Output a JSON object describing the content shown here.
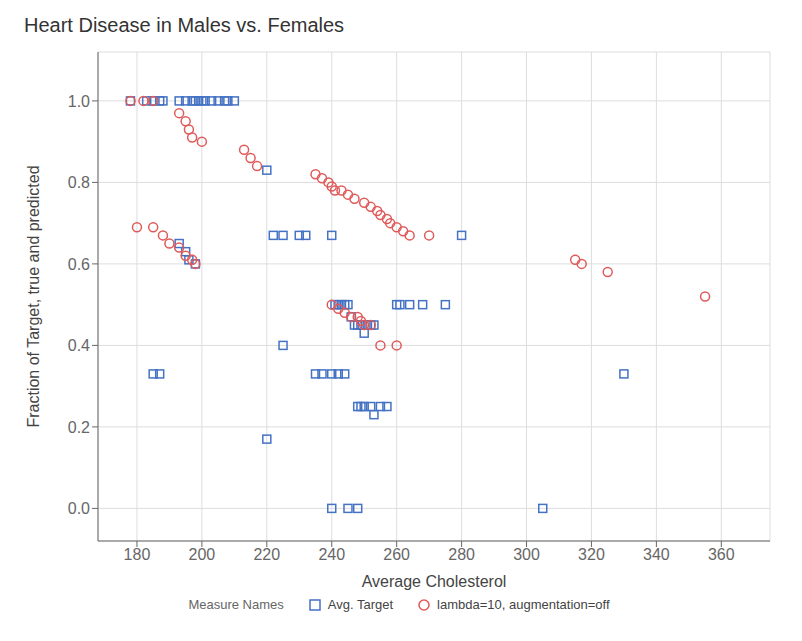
{
  "chart_data": {
    "type": "scatter",
    "title": "Heart Disease in Males vs. Females",
    "x_label": "Average Cholesterol",
    "y_label": "Fraction of Target, true and predicted",
    "xlim": [
      168,
      375
    ],
    "ylim": [
      -0.08,
      1.12
    ],
    "xticks": [
      180,
      200,
      220,
      240,
      260,
      280,
      300,
      320,
      340,
      360
    ],
    "yticks": [
      {
        "value": 0.0,
        "label": "0.0"
      },
      0.2,
      0.4,
      0.6,
      0.8,
      {
        "value": 1.0,
        "label": "1.0"
      }
    ],
    "grid": true,
    "legend": "bottom",
    "legend_title": "Measure Names",
    "series": [
      {
        "name": "Avg. Target",
        "color": "#4472c4",
        "marker": "square",
        "x": [
          178,
          183,
          185,
          187,
          188,
          193,
          195,
          197,
          198,
          199,
          200,
          201,
          203,
          205,
          207,
          208,
          210,
          220,
          222,
          225,
          230,
          232,
          235,
          237,
          240,
          241,
          242,
          243,
          244,
          245,
          246,
          247,
          248,
          249,
          250,
          251,
          252,
          253,
          240,
          242,
          244,
          248,
          249,
          250,
          252,
          253,
          255,
          257,
          260,
          261,
          264,
          268,
          275,
          280,
          305,
          240,
          245,
          248,
          185,
          187,
          193,
          195,
          196,
          198,
          220,
          225,
          330
        ],
        "values": [
          1.0,
          1.0,
          1.0,
          1.0,
          1.0,
          1.0,
          1.0,
          1.0,
          1.0,
          1.0,
          1.0,
          1.0,
          1.0,
          1.0,
          1.0,
          1.0,
          1.0,
          0.83,
          0.67,
          0.67,
          0.67,
          0.67,
          0.33,
          0.33,
          0.67,
          0.5,
          0.5,
          0.5,
          0.5,
          0.5,
          0.47,
          0.45,
          0.45,
          0.45,
          0.43,
          0.45,
          0.45,
          0.45,
          0.33,
          0.33,
          0.33,
          0.25,
          0.25,
          0.25,
          0.25,
          0.23,
          0.25,
          0.25,
          0.5,
          0.5,
          0.5,
          0.5,
          0.5,
          0.67,
          0.0,
          0.0,
          0.0,
          0.0,
          0.33,
          0.33,
          0.65,
          0.63,
          0.61,
          0.6,
          0.17,
          0.4,
          0.33
        ]
      },
      {
        "name": "lambda=10, augmentation=off",
        "color": "#e05a5a",
        "marker": "circle",
        "x": [
          178,
          182,
          185,
          193,
          195,
          196,
          197,
          200,
          213,
          215,
          217,
          235,
          237,
          239,
          240,
          241,
          243,
          245,
          247,
          250,
          252,
          254,
          255,
          257,
          258,
          260,
          262,
          264,
          270,
          315,
          317,
          325,
          355,
          185,
          188,
          190,
          193,
          195,
          197,
          198,
          240,
          242,
          244,
          246,
          248,
          249,
          250,
          252,
          255,
          260,
          180
        ],
        "values": [
          1.0,
          1.0,
          1.0,
          0.97,
          0.95,
          0.93,
          0.91,
          0.9,
          0.88,
          0.86,
          0.84,
          0.82,
          0.81,
          0.8,
          0.79,
          0.78,
          0.78,
          0.77,
          0.76,
          0.75,
          0.74,
          0.73,
          0.72,
          0.71,
          0.7,
          0.69,
          0.68,
          0.67,
          0.67,
          0.61,
          0.6,
          0.58,
          0.52,
          0.69,
          0.67,
          0.65,
          0.64,
          0.62,
          0.61,
          0.6,
          0.5,
          0.49,
          0.48,
          0.47,
          0.47,
          0.46,
          0.45,
          0.45,
          0.4,
          0.4,
          0.69
        ]
      }
    ]
  }
}
